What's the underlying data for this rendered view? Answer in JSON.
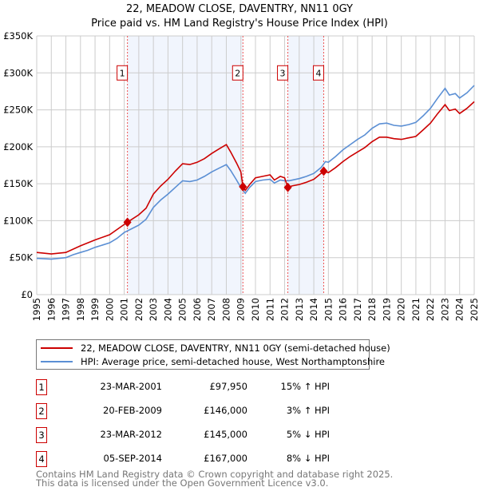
{
  "title": "22, MEADOW CLOSE, DAVENTRY, NN11 0GY",
  "subtitle": "Price paid vs. HM Land Registry's House Price Index (HPI)",
  "chart_data": {
    "type": "line",
    "title": "22, MEADOW CLOSE, DAVENTRY, NN11 0GY",
    "subtitle": "Price paid vs. HM Land Registry's House Price Index (HPI)",
    "xlim": [
      1995,
      2025
    ],
    "ylim": [
      0,
      350000
    ],
    "grid": true,
    "legend_placement": "below",
    "x_ticks": [
      "1995",
      "1996",
      "1997",
      "1998",
      "1999",
      "2000",
      "2001",
      "2002",
      "2003",
      "2004",
      "2005",
      "2006",
      "2007",
      "2008",
      "2009",
      "2010",
      "2011",
      "2012",
      "2013",
      "2014",
      "2015",
      "2016",
      "2017",
      "2018",
      "2019",
      "2020",
      "2021",
      "2022",
      "2023",
      "2024",
      "2025"
    ],
    "y_ticks": [
      {
        "value": 0,
        "label": "£0"
      },
      {
        "value": 50000,
        "label": "£50K"
      },
      {
        "value": 100000,
        "label": "£100K"
      },
      {
        "value": 150000,
        "label": "£150K"
      },
      {
        "value": 200000,
        "label": "£200K"
      },
      {
        "value": 250000,
        "label": "£250K"
      },
      {
        "value": 300000,
        "label": "£300K"
      },
      {
        "value": 350000,
        "label": "£350K"
      }
    ],
    "shaded_ranges": [
      [
        2001.22,
        2009.14
      ],
      [
        2012.22,
        2014.68
      ]
    ],
    "series": [
      {
        "name": "22, MEADOW CLOSE, DAVENTRY, NN11 0GY (semi-detached house)",
        "color": "#cc0000",
        "x": [
          1995,
          1996,
          1997,
          1998,
          1999,
          2000,
          2001,
          2001.22,
          2002,
          2002.5,
          2003,
          2003.5,
          2004,
          2004.5,
          2005,
          2005.5,
          2006,
          2006.5,
          2007,
          2007.5,
          2008,
          2008.3,
          2008.7,
          2009.0,
          2009.14,
          2009.3,
          2009.6,
          2010,
          2010.5,
          2011,
          2011.3,
          2011.7,
          2012.0,
          2012.22,
          2012.5,
          2013,
          2013.5,
          2014,
          2014.68,
          2015,
          2015.5,
          2016,
          2016.5,
          2017,
          2017.5,
          2018,
          2018.5,
          2019,
          2019.5,
          2020,
          2020.5,
          2021,
          2021.5,
          2022,
          2022.5,
          2023,
          2023.3,
          2023.7,
          2024,
          2024.5,
          2025
        ],
        "y": [
          57000,
          55000,
          57000,
          66000,
          74000,
          81000,
          95000,
          97950,
          108000,
          117000,
          136000,
          147000,
          156000,
          167000,
          177000,
          176000,
          179000,
          184000,
          191000,
          197000,
          203000,
          193000,
          178000,
          166000,
          146000,
          141000,
          149000,
          158000,
          160000,
          162000,
          155000,
          160000,
          158000,
          145000,
          147000,
          149000,
          152000,
          156000,
          167000,
          165000,
          172000,
          180000,
          187000,
          193000,
          199000,
          207000,
          213000,
          213000,
          211000,
          210000,
          212000,
          214000,
          223000,
          232000,
          245000,
          257000,
          249000,
          251000,
          245000,
          252000,
          261000
        ]
      },
      {
        "name": "HPI: Average price, semi-detached house, West Northamptonshire",
        "color": "#5b8fd4",
        "x": [
          1995,
          1996,
          1997,
          1997.5,
          1998,
          1998.5,
          1999,
          2000,
          2000.5,
          2001,
          2001.5,
          2002,
          2002.5,
          2003,
          2003.5,
          2004,
          2004.5,
          2005,
          2005.5,
          2006,
          2006.5,
          2007,
          2007.5,
          2008,
          2008.3,
          2008.7,
          2009,
          2009.3,
          2009.6,
          2010,
          2010.5,
          2011,
          2011.3,
          2011.7,
          2012,
          2012.3,
          2013,
          2013.5,
          2014,
          2014.5,
          2014.8,
          2015,
          2015.5,
          2016,
          2016.5,
          2017,
          2017.5,
          2018,
          2018.5,
          2019,
          2019.5,
          2020,
          2020.5,
          2021,
          2021.5,
          2022,
          2022.5,
          2023,
          2023.3,
          2023.7,
          2024,
          2024.5,
          2025
        ],
        "y": [
          49000,
          48000,
          50000,
          54000,
          57000,
          60000,
          64000,
          70000,
          76000,
          84000,
          89000,
          94000,
          102000,
          118000,
          128000,
          136000,
          145000,
          154000,
          153000,
          155000,
          160000,
          166000,
          171000,
          176000,
          168000,
          155000,
          145000,
          137000,
          145000,
          153000,
          155000,
          156000,
          151000,
          155000,
          154000,
          154000,
          157000,
          160000,
          164000,
          172000,
          180000,
          179000,
          187000,
          196000,
          203000,
          210000,
          216000,
          225000,
          231000,
          232000,
          229000,
          228000,
          230000,
          233000,
          242000,
          252000,
          266000,
          279000,
          270000,
          272000,
          266000,
          273000,
          283000
        ]
      }
    ],
    "sales": [
      {
        "num": "1",
        "x": 2001.22,
        "price": 97950,
        "date": "23-MAR-2001",
        "price_label": "£97,950",
        "hpi": "15% ↑ HPI"
      },
      {
        "num": "2",
        "x": 2009.14,
        "price": 146000,
        "date": "20-FEB-2009",
        "price_label": "£146,000",
        "hpi": "3% ↑ HPI"
      },
      {
        "num": "3",
        "x": 2012.22,
        "price": 145000,
        "date": "23-MAR-2012",
        "price_label": "£145,000",
        "hpi": "5% ↓ HPI"
      },
      {
        "num": "4",
        "x": 2014.68,
        "price": 167000,
        "date": "05-SEP-2014",
        "price_label": "£167,000",
        "hpi": "8% ↓ HPI"
      }
    ]
  },
  "legend": {
    "property": "22, MEADOW CLOSE, DAVENTRY, NN11 0GY (semi-detached house)",
    "hpi": "HPI: Average price, semi-detached house, West Northamptonshire"
  },
  "footer": {
    "line1": "Contains HM Land Registry data © Crown copyright and database right 2025.",
    "line2": "This data is licensed under the Open Government Licence v3.0."
  }
}
